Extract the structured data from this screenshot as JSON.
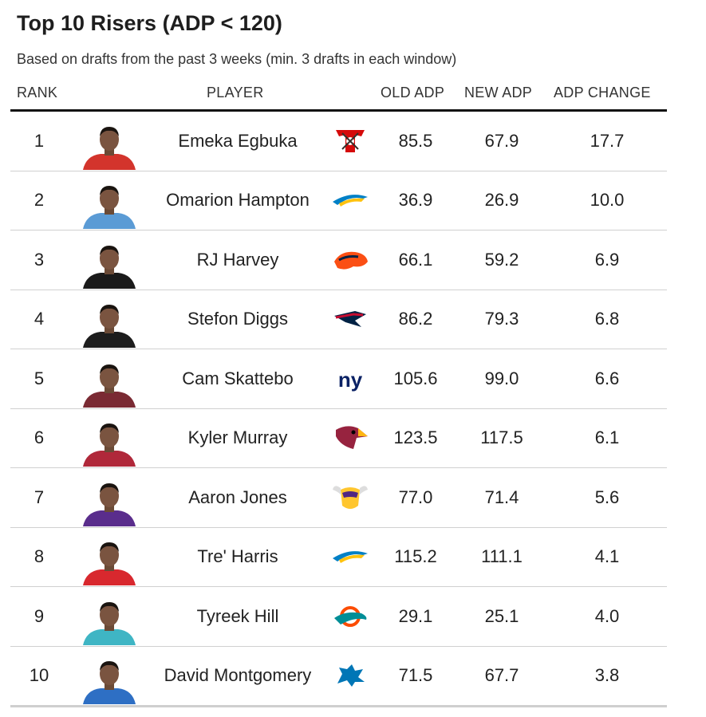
{
  "title": "Top 10 Risers (ADP < 120)",
  "subtitle": "Based on drafts from the past 3 weeks (min. 3 drafts in each window)",
  "columns": {
    "rank": "RANK",
    "player": "PLAYER",
    "old_adp": "OLD ADP",
    "new_adp": "NEW ADP",
    "adp_change": "ADP CHANGE"
  },
  "rows": [
    {
      "rank": "1",
      "player": "Emeka Egbuka",
      "team_logo": "buccaneers-logo-icon",
      "old_adp": "85.5",
      "new_adp": "67.9",
      "change": "17.7",
      "jersey": "#d3342c",
      "team_color": "#d50a0a"
    },
    {
      "rank": "2",
      "player": "Omarion Hampton",
      "team_logo": "chargers-logo-icon",
      "old_adp": "36.9",
      "new_adp": "26.9",
      "change": "10.0",
      "jersey": "#5b9bd5",
      "team_color": "#0080c6"
    },
    {
      "rank": "3",
      "player": "RJ Harvey",
      "team_logo": "broncos-logo-icon",
      "old_adp": "66.1",
      "new_adp": "59.2",
      "change": "6.9",
      "jersey": "#1a1a1a",
      "team_color": "#fb4f14"
    },
    {
      "rank": "4",
      "player": "Stefon Diggs",
      "team_logo": "patriots-logo-icon",
      "old_adp": "86.2",
      "new_adp": "79.3",
      "change": "6.8",
      "jersey": "#1d1d1d",
      "team_color": "#002244"
    },
    {
      "rank": "5",
      "player": "Cam Skattebo",
      "team_logo": "giants-logo-icon",
      "old_adp": "105.6",
      "new_adp": "99.0",
      "change": "6.6",
      "jersey": "#7a2a33",
      "team_color": "#0b2265"
    },
    {
      "rank": "6",
      "player": "Kyler Murray",
      "team_logo": "cardinals-logo-icon",
      "old_adp": "123.5",
      "new_adp": "117.5",
      "change": "6.1",
      "jersey": "#b0283a",
      "team_color": "#97233f"
    },
    {
      "rank": "7",
      "player": "Aaron Jones",
      "team_logo": "vikings-logo-icon",
      "old_adp": "77.0",
      "new_adp": "71.4",
      "change": "5.6",
      "jersey": "#5a2d8c",
      "team_color": "#4f2683"
    },
    {
      "rank": "8",
      "player": "Tre' Harris",
      "team_logo": "chargers-logo-icon",
      "old_adp": "115.2",
      "new_adp": "111.1",
      "change": "4.1",
      "jersey": "#d8282e",
      "team_color": "#0080c6"
    },
    {
      "rank": "9",
      "player": "Tyreek Hill",
      "team_logo": "dolphins-logo-icon",
      "old_adp": "29.1",
      "new_adp": "25.1",
      "change": "4.0",
      "jersey": "#3fb5c4",
      "team_color": "#008e97"
    },
    {
      "rank": "10",
      "player": "David Montgomery",
      "team_logo": "lions-logo-icon",
      "old_adp": "71.5",
      "new_adp": "67.7",
      "change": "3.8",
      "jersey": "#2e6fc4",
      "team_color": "#0076b6"
    }
  ]
}
